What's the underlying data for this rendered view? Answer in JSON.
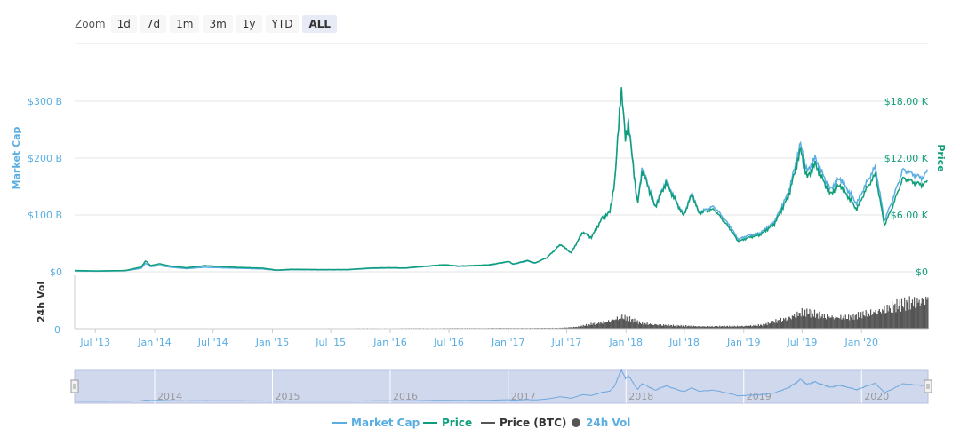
{
  "zoom": {
    "label": "Zoom",
    "buttons": [
      "1d",
      "7d",
      "1m",
      "3m",
      "1y",
      "YTD",
      "ALL"
    ],
    "active": "ALL"
  },
  "colors": {
    "market_cap": "#5aaee2",
    "price": "#0f9e7a",
    "price_btc": "#555555",
    "volume": "#555555",
    "navigator_fill": "#d0d8ee",
    "navigator_line": "#6fa8dc",
    "grid": "#e6e6e6"
  },
  "chart_data": {
    "type": "line",
    "title": "",
    "y_axes": {
      "market_cap": {
        "label": "Market Cap",
        "ticks": [
          "$0",
          "$100 B",
          "$200 B",
          "$300 B"
        ],
        "values": [
          0,
          100,
          200,
          300
        ],
        "range": [
          0,
          300
        ]
      },
      "price": {
        "label": "Price",
        "ticks": [
          "$0",
          "$6.00 K",
          "$12.00 K",
          "$18.00 K"
        ],
        "values": [
          0,
          6,
          12,
          18
        ],
        "range": [
          0,
          18
        ]
      },
      "volume": {
        "label": "24h Vol",
        "ticks": [
          "0"
        ]
      }
    },
    "x_ticks": [
      "Jul '13",
      "Jan '14",
      "Jul '14",
      "Jan '15",
      "Jul '15",
      "Jan '16",
      "Jul '16",
      "Jan '17",
      "Jul '17",
      "Jan '18",
      "Jul '18",
      "Jan '19",
      "Jul '19",
      "Jan '20"
    ],
    "x_range": [
      "2013-04-28",
      "2020-07-25"
    ],
    "series": [
      {
        "name": "Market Cap",
        "unit": "USD billions",
        "points": [
          [
            "2013-04-28",
            1.5
          ],
          [
            "2013-07-01",
            1.0
          ],
          [
            "2013-10-01",
            1.8
          ],
          [
            "2013-11-20",
            6
          ],
          [
            "2013-12-04",
            15
          ],
          [
            "2013-12-20",
            9
          ],
          [
            "2014-01-15",
            11
          ],
          [
            "2014-02-20",
            8
          ],
          [
            "2014-04-10",
            5.5
          ],
          [
            "2014-06-05",
            8
          ],
          [
            "2014-09-01",
            6.5
          ],
          [
            "2014-12-01",
            5
          ],
          [
            "2015-01-14",
            2.5
          ],
          [
            "2015-03-01",
            3.6
          ],
          [
            "2015-06-01",
            3.3
          ],
          [
            "2015-08-20",
            3.4
          ],
          [
            "2015-11-05",
            6
          ],
          [
            "2016-01-01",
            6.5
          ],
          [
            "2016-02-15",
            6.2
          ],
          [
            "2016-06-17",
            12
          ],
          [
            "2016-08-01",
            9.5
          ],
          [
            "2016-11-01",
            11.5
          ],
          [
            "2017-01-04",
            18
          ],
          [
            "2017-01-15",
            13
          ],
          [
            "2017-03-01",
            19
          ],
          [
            "2017-03-25",
            15
          ],
          [
            "2017-05-01",
            25
          ],
          [
            "2017-06-12",
            48
          ],
          [
            "2017-07-15",
            33
          ],
          [
            "2017-08-20",
            70
          ],
          [
            "2017-09-15",
            60
          ],
          [
            "2017-10-20",
            95
          ],
          [
            "2017-11-12",
            105
          ],
          [
            "2017-11-28",
            165
          ],
          [
            "2017-12-17",
            325
          ],
          [
            "2017-12-30",
            235
          ],
          [
            "2018-01-08",
            265
          ],
          [
            "2018-02-06",
            120
          ],
          [
            "2018-02-20",
            185
          ],
          [
            "2018-04-01",
            115
          ],
          [
            "2018-05-05",
            160
          ],
          [
            "2018-06-28",
            100
          ],
          [
            "2018-07-25",
            140
          ],
          [
            "2018-08-14",
            105
          ],
          [
            "2018-10-01",
            115
          ],
          [
            "2018-11-20",
            80
          ],
          [
            "2018-12-15",
            57
          ],
          [
            "2019-01-15",
            64
          ],
          [
            "2019-02-20",
            68
          ],
          [
            "2019-04-05",
            87
          ],
          [
            "2019-05-20",
            140
          ],
          [
            "2019-06-26",
            225
          ],
          [
            "2019-07-16",
            175
          ],
          [
            "2019-08-10",
            200
          ],
          [
            "2019-09-25",
            145
          ],
          [
            "2019-10-26",
            165
          ],
          [
            "2019-12-17",
            120
          ],
          [
            "2020-01-15",
            155
          ],
          [
            "2020-02-13",
            185
          ],
          [
            "2020-03-12",
            90
          ],
          [
            "2020-04-05",
            125
          ],
          [
            "2020-05-08",
            180
          ],
          [
            "2020-06-15",
            170
          ],
          [
            "2020-07-10",
            165
          ],
          [
            "2020-07-25",
            180
          ]
        ]
      },
      {
        "name": "Price",
        "unit": "USD thousands",
        "points": [
          [
            "2013-04-28",
            0.14
          ],
          [
            "2013-07-01",
            0.09
          ],
          [
            "2013-10-01",
            0.13
          ],
          [
            "2013-11-20",
            0.5
          ],
          [
            "2013-12-04",
            1.15
          ],
          [
            "2013-12-20",
            0.65
          ],
          [
            "2014-01-15",
            0.85
          ],
          [
            "2014-02-20",
            0.6
          ],
          [
            "2014-04-10",
            0.42
          ],
          [
            "2014-06-05",
            0.65
          ],
          [
            "2014-09-01",
            0.48
          ],
          [
            "2014-12-01",
            0.38
          ],
          [
            "2015-01-14",
            0.18
          ],
          [
            "2015-03-01",
            0.26
          ],
          [
            "2015-06-01",
            0.23
          ],
          [
            "2015-08-20",
            0.23
          ],
          [
            "2015-11-05",
            0.4
          ],
          [
            "2016-01-01",
            0.43
          ],
          [
            "2016-02-15",
            0.4
          ],
          [
            "2016-06-17",
            0.75
          ],
          [
            "2016-08-01",
            0.6
          ],
          [
            "2016-11-01",
            0.73
          ],
          [
            "2017-01-04",
            1.1
          ],
          [
            "2017-01-15",
            0.8
          ],
          [
            "2017-03-01",
            1.2
          ],
          [
            "2017-03-25",
            0.93
          ],
          [
            "2017-05-01",
            1.5
          ],
          [
            "2017-06-12",
            2.9
          ],
          [
            "2017-07-15",
            2.0
          ],
          [
            "2017-08-20",
            4.2
          ],
          [
            "2017-09-15",
            3.6
          ],
          [
            "2017-10-20",
            5.7
          ],
          [
            "2017-11-12",
            6.3
          ],
          [
            "2017-11-28",
            9.8
          ],
          [
            "2017-12-17",
            19.5
          ],
          [
            "2017-12-30",
            14.0
          ],
          [
            "2018-01-08",
            15.7
          ],
          [
            "2018-02-06",
            7.0
          ],
          [
            "2018-02-20",
            10.8
          ],
          [
            "2018-04-01",
            6.8
          ],
          [
            "2018-05-05",
            9.4
          ],
          [
            "2018-06-28",
            5.9
          ],
          [
            "2018-07-25",
            8.2
          ],
          [
            "2018-08-14",
            6.2
          ],
          [
            "2018-10-01",
            6.6
          ],
          [
            "2018-11-20",
            4.5
          ],
          [
            "2018-12-15",
            3.2
          ],
          [
            "2019-01-15",
            3.6
          ],
          [
            "2019-02-20",
            3.9
          ],
          [
            "2019-04-05",
            5.0
          ],
          [
            "2019-05-20",
            8.0
          ],
          [
            "2019-06-26",
            12.9
          ],
          [
            "2019-07-16",
            9.9
          ],
          [
            "2019-08-10",
            11.4
          ],
          [
            "2019-09-25",
            8.2
          ],
          [
            "2019-10-26",
            9.2
          ],
          [
            "2019-12-17",
            6.6
          ],
          [
            "2020-01-15",
            8.7
          ],
          [
            "2020-02-13",
            10.3
          ],
          [
            "2020-03-12",
            4.9
          ],
          [
            "2020-04-05",
            6.8
          ],
          [
            "2020-05-08",
            9.9
          ],
          [
            "2020-06-15",
            9.4
          ],
          [
            "2020-07-10",
            9.2
          ],
          [
            "2020-07-25",
            9.6
          ]
        ]
      },
      {
        "name": "Price (BTC)",
        "points": []
      },
      {
        "name": "24h Vol",
        "unit": "relative to panel height",
        "points": [
          [
            "2013-04-28",
            0.0
          ],
          [
            "2017-06-01",
            0.02
          ],
          [
            "2017-08-01",
            0.05
          ],
          [
            "2017-11-01",
            0.2
          ],
          [
            "2017-12-17",
            0.33
          ],
          [
            "2018-02-15",
            0.15
          ],
          [
            "2018-06-01",
            0.08
          ],
          [
            "2018-10-01",
            0.06
          ],
          [
            "2018-12-15",
            0.07
          ],
          [
            "2019-03-01",
            0.1
          ],
          [
            "2019-05-15",
            0.3
          ],
          [
            "2019-07-01",
            0.45
          ],
          [
            "2019-09-01",
            0.35
          ],
          [
            "2019-12-01",
            0.3
          ],
          [
            "2020-03-12",
            0.55
          ],
          [
            "2020-05-10",
            0.65
          ],
          [
            "2020-07-25",
            0.85
          ]
        ]
      }
    ],
    "legend": {
      "placement": "bottom",
      "items": [
        "Market Cap",
        "Price",
        "Price (BTC)",
        "24h Vol"
      ]
    },
    "navigator": {
      "year_labels": [
        "2014",
        "2015",
        "2016",
        "2017",
        "2018",
        "2019",
        "2020"
      ]
    }
  }
}
